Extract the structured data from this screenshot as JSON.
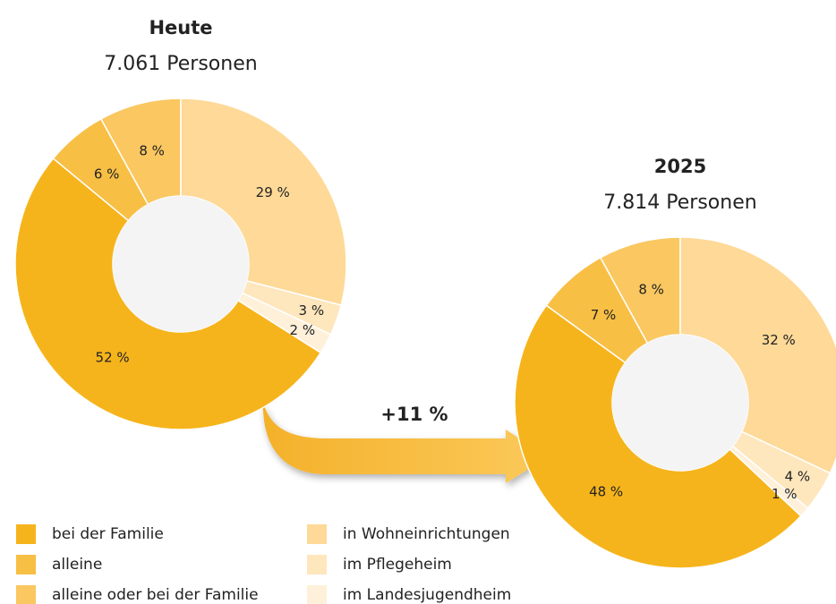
{
  "chart_data": [
    {
      "type": "pie",
      "title": "Heute",
      "subtitle": "7.061 Personen",
      "values": [
        52,
        6,
        8,
        29,
        3,
        2
      ],
      "value_labels": [
        "52 %",
        "6 %",
        "8 %",
        "29 %",
        "3 %",
        "2 %"
      ]
    },
    {
      "type": "pie",
      "title": "2025",
      "subtitle": "7.814 Personen",
      "values": [
        48,
        7,
        8,
        32,
        4,
        1
      ],
      "value_labels": [
        "48 %",
        "7 %",
        "8 %",
        "32 %",
        "4 %",
        "1 %"
      ]
    }
  ],
  "legend": {
    "items": [
      "bei der Familie",
      "alleine",
      "alleine oder bei der Familie",
      "in Wohneinrichtungen",
      "im Pflegeheim",
      "im Landesjugendheim"
    ],
    "colors": [
      "#f6b41c",
      "#f8bf45",
      "#fac761",
      "#fed997",
      "#fee6bd",
      "#fff0d9"
    ]
  },
  "annotation": "+11 %"
}
